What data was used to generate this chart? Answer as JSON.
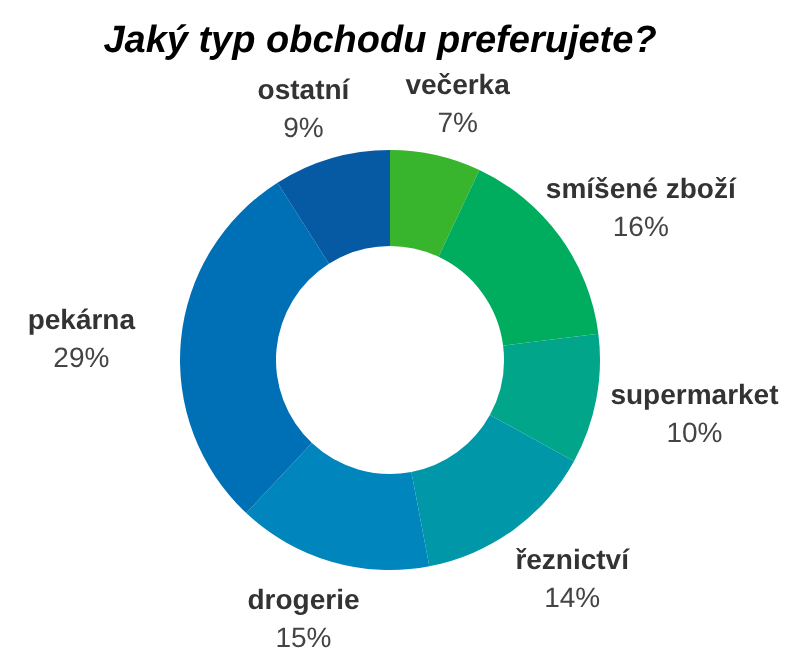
{
  "chart_data": {
    "type": "donut",
    "title": "Jaký typ obchodu preferujete?",
    "categories": [
      "večerka",
      "smíšené zboží",
      "supermarket",
      "řeznictví",
      "drogerie",
      "pekárna",
      "ostatní"
    ],
    "values": [
      7,
      16,
      10,
      14,
      15,
      29,
      9
    ],
    "value_labels": [
      "7%",
      "16%",
      "10%",
      "14%",
      "15%",
      "29%",
      "9%"
    ],
    "colors": [
      "#38b52c",
      "#00ad5e",
      "#00a58a",
      "#0097a8",
      "#0085bd",
      "#0070b6",
      "#055aa3"
    ],
    "legend": false
  }
}
